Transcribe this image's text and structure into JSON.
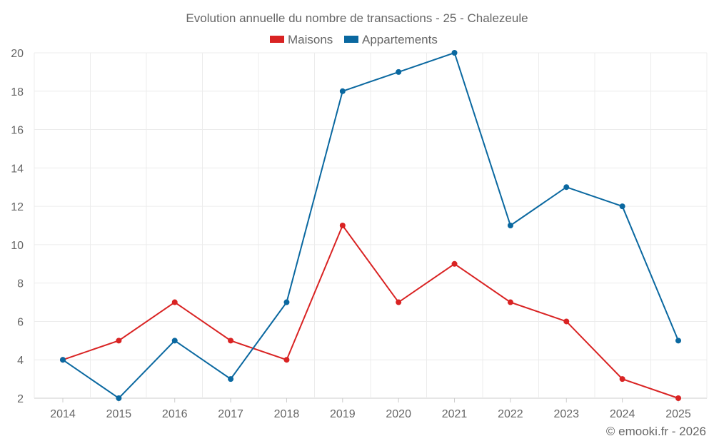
{
  "chart_data": {
    "type": "line",
    "title": "Evolution annuelle du nombre de transactions - 25 - Chalezeule",
    "categories": [
      "2014",
      "2015",
      "2016",
      "2017",
      "2018",
      "2019",
      "2020",
      "2021",
      "2022",
      "2023",
      "2024",
      "2025"
    ],
    "series": [
      {
        "name": "Maisons",
        "color": "#d92323",
        "values": [
          4,
          5,
          7,
          5,
          4,
          11,
          7,
          9,
          7,
          6,
          3,
          2
        ]
      },
      {
        "name": "Appartements",
        "color": "#0a68a0",
        "values": [
          4,
          2,
          5,
          3,
          7,
          18,
          19,
          20,
          11,
          13,
          12,
          5
        ]
      }
    ],
    "yticks": [
      2,
      4,
      6,
      8,
      10,
      12,
      14,
      16,
      18,
      20
    ],
    "ylim": [
      2,
      20
    ],
    "xlabel": "",
    "ylabel": "",
    "grid": true,
    "legend": "top-center",
    "credit": "© emooki.fr - 2026"
  }
}
